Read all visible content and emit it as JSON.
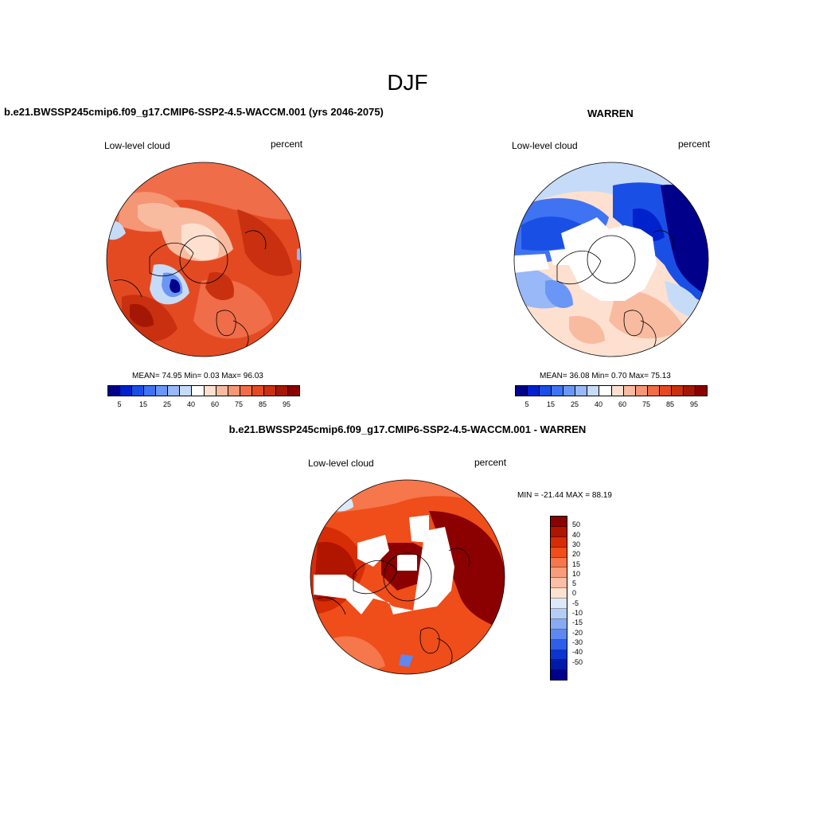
{
  "title": "DJF",
  "panels": {
    "model": {
      "title": "b.e21.BWSSP245cmip6.f09_g17.CMIP6-SSP2-4.5-WACCM.001 (yrs 2046-2075)",
      "variable": "Low-level cloud",
      "units": "percent",
      "stats": "MEAN=  74.95  Min=   0.03  Max=  96.03"
    },
    "obs": {
      "title": "WARREN",
      "variable": "Low-level cloud",
      "units": "percent",
      "stats": "MEAN=  36.08  Min=   0.70  Max=  75.13"
    },
    "diff": {
      "title": "b.e21.BWSSP245cmip6.f09_g17.CMIP6-SSP2-4.5-WACCM.001 - WARREN",
      "variable": "Low-level cloud",
      "units": "percent",
      "stats": "MIN = -21.44 MAX =  88.19"
    }
  },
  "colorbar_abs": {
    "colors": [
      "#00008b",
      "#0022cc",
      "#1a4fe6",
      "#3f73f2",
      "#6a96f5",
      "#98b8f7",
      "#c6dbf8",
      "#ffffff",
      "#fde0d0",
      "#f9bba0",
      "#f59675",
      "#ef6d49",
      "#e44a22",
      "#c8300f",
      "#a51705",
      "#8b0000"
    ],
    "labels": [
      "5",
      "15",
      "25",
      "40",
      "60",
      "75",
      "85",
      "95"
    ]
  },
  "colorbar_diff": {
    "colors": [
      "#8b0000",
      "#b01500",
      "#d62d06",
      "#ef4d1a",
      "#f5774b",
      "#f89c7a",
      "#fbbfa5",
      "#fde2d2",
      "#dde9fa",
      "#b5cdf6",
      "#87aaf2",
      "#5e88ef",
      "#2e5fe8",
      "#0d33d0",
      "#001aa8",
      "#00008b"
    ],
    "labels": [
      "50",
      "40",
      "30",
      "20",
      "15",
      "10",
      "5",
      "0",
      "-5",
      "-10",
      "-15",
      "-20",
      "-30",
      "-40",
      "-50"
    ]
  }
}
